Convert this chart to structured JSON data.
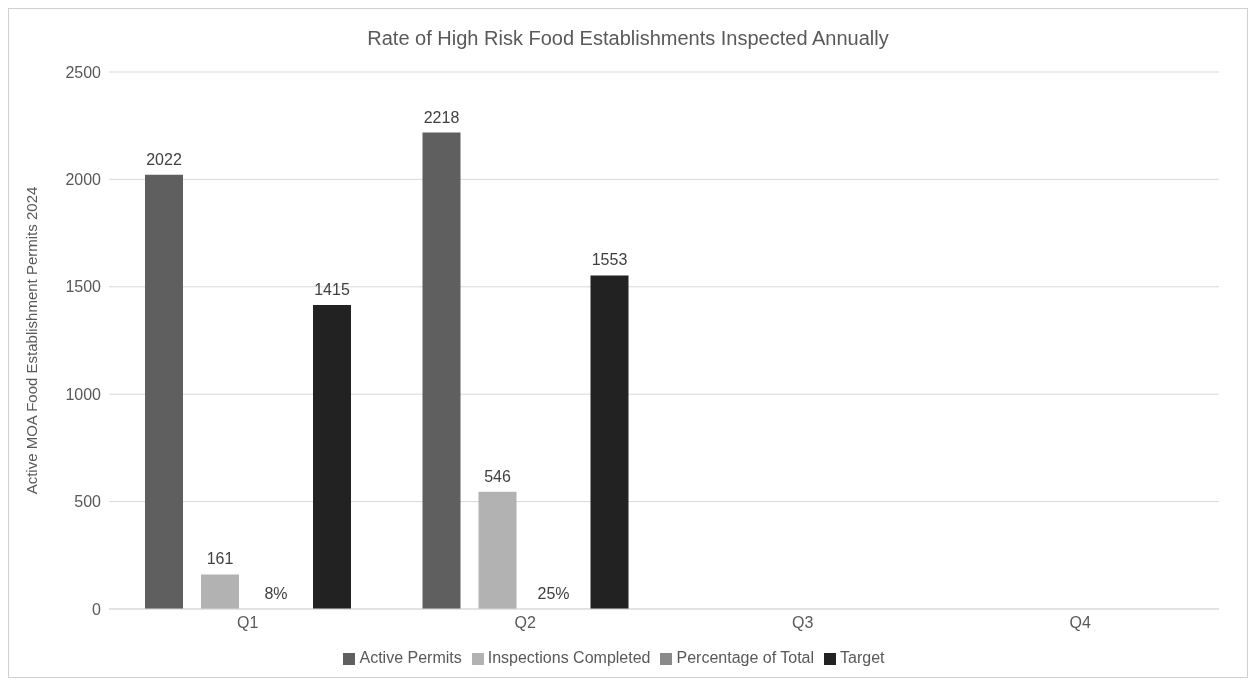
{
  "chart_data": {
    "type": "bar",
    "title": "Rate of High Risk Food Establishments Inspected Annually",
    "ylabel": "Active MOA Food Establishment  Permits 2024",
    "categories": [
      "Q1",
      "Q2",
      "Q3",
      "Q4"
    ],
    "series": [
      {
        "name": "Active Permits",
        "color": "#5f5f5f",
        "values": [
          2022,
          2218,
          null,
          null
        ],
        "value_labels": [
          "2022",
          "2218",
          null,
          null
        ]
      },
      {
        "name": "Inspections Completed",
        "color": "#b2b2b2",
        "values": [
          161,
          546,
          null,
          null
        ],
        "value_labels": [
          "161",
          "546",
          null,
          null
        ]
      },
      {
        "name": "Percentage of Total",
        "color": "#8a8a8a",
        "values": [
          0.08,
          0.25,
          null,
          null
        ],
        "value_labels": [
          "8%",
          "25%",
          null,
          null
        ]
      },
      {
        "name": "Target",
        "color": "#222222",
        "values": [
          1415,
          1553,
          null,
          null
        ],
        "value_labels": [
          "1415",
          "1553",
          null,
          null
        ]
      }
    ],
    "ylim": [
      0,
      2500
    ],
    "yticks": [
      0,
      500,
      1000,
      1500,
      2000,
      2500
    ],
    "grid": "y",
    "legend": "bottom"
  }
}
